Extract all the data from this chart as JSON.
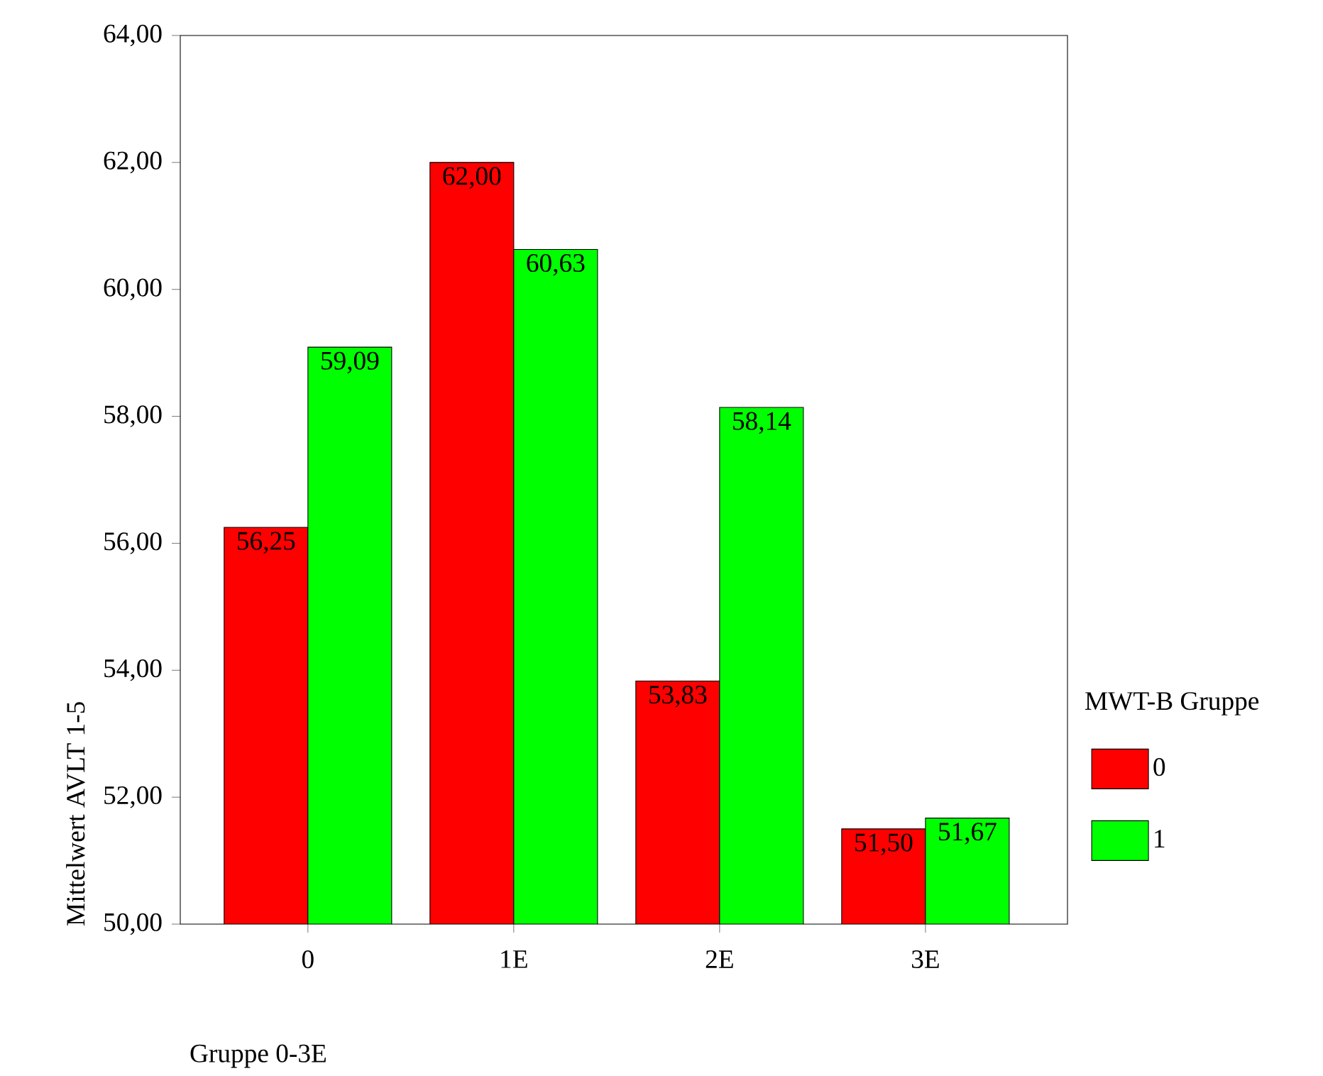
{
  "chart_data": {
    "type": "bar",
    "xlabel": "Gruppe 0-3E",
    "ylabel": "Mittelwert AVLT 1-5",
    "legend_title": "MWT-B Gruppe",
    "categories": [
      "0",
      "1E",
      "2E",
      "3E"
    ],
    "series": [
      {
        "name": "0",
        "color": "#ff0000",
        "values": [
          56.25,
          62.0,
          53.83,
          51.5
        ],
        "value_labels": [
          "56,25",
          "62,00",
          "53,83",
          "51,50"
        ]
      },
      {
        "name": "1",
        "color": "#00ff00",
        "values": [
          59.09,
          60.63,
          58.14,
          51.67
        ],
        "value_labels": [
          "59,09",
          "60,63",
          "58,14",
          "51,67"
        ]
      }
    ],
    "ylim": [
      50,
      64
    ],
    "yticks": [
      {
        "value": 50,
        "label": "50,00"
      },
      {
        "value": 52,
        "label": "52,00"
      },
      {
        "value": 54,
        "label": "54,00"
      },
      {
        "value": 56,
        "label": "56,00"
      },
      {
        "value": 58,
        "label": "58,00"
      },
      {
        "value": 60,
        "label": "60,00"
      },
      {
        "value": 62,
        "label": "62,00"
      },
      {
        "value": 64,
        "label": "64,00"
      }
    ],
    "grid": false,
    "legend": "right"
  }
}
